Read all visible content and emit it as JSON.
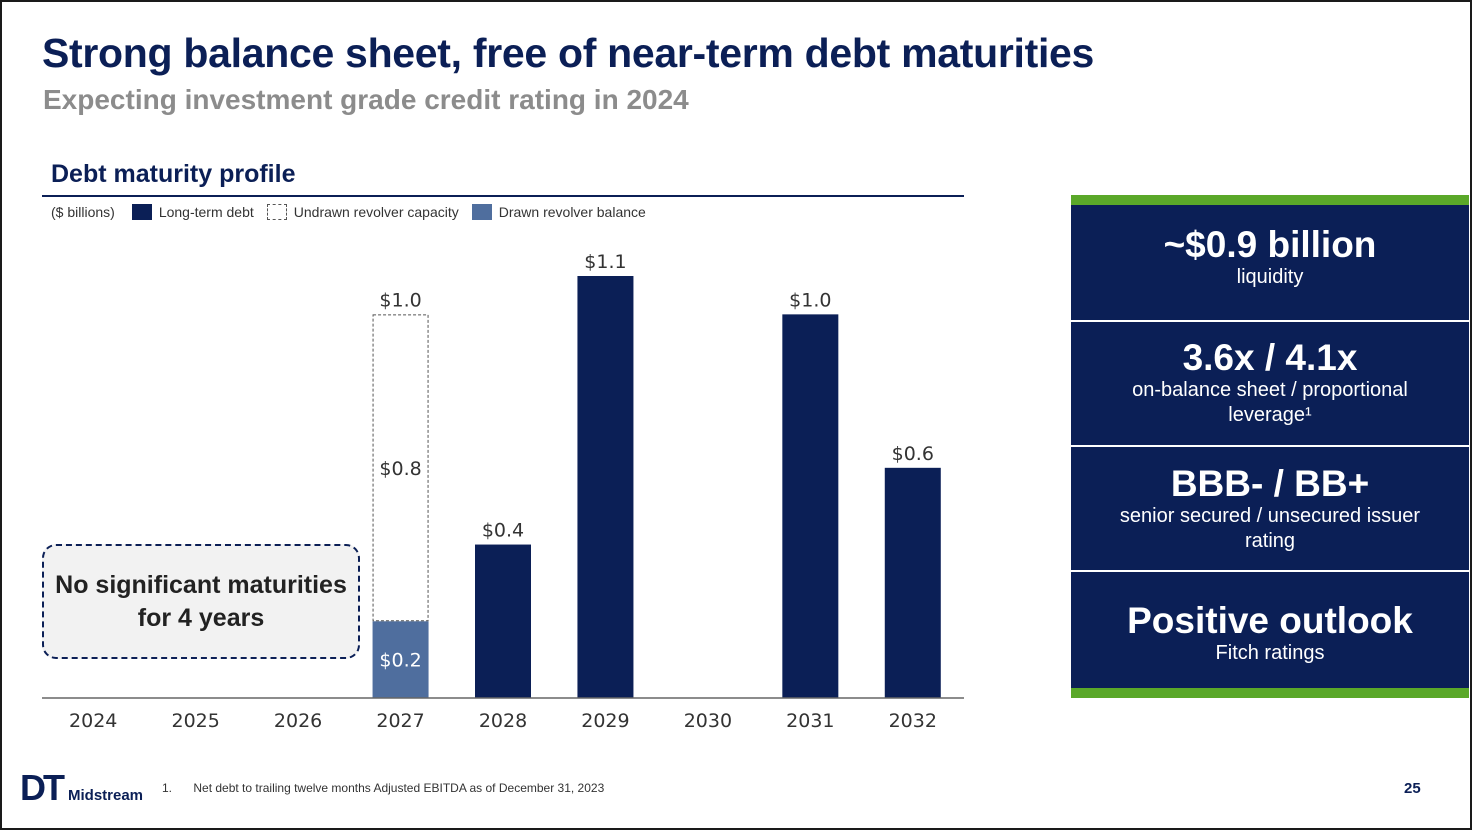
{
  "header": {
    "title": "Strong balance sheet, free of near-term debt maturities",
    "subtitle": "Expecting investment grade credit rating in 2024"
  },
  "section": {
    "title": "Debt maturity profile"
  },
  "legend": {
    "unit": "($ billions)",
    "items": [
      {
        "label": "Long-term debt",
        "color": "#0b1f56"
      },
      {
        "label": "Undrawn revolver capacity",
        "color": "#ffffff"
      },
      {
        "label": "Drawn revolver balance",
        "color": "#4f6e9e"
      }
    ]
  },
  "chart_data": {
    "type": "bar",
    "stacked": true,
    "title": "Debt maturity profile",
    "unit": "($ billions)",
    "categories": [
      "2024",
      "2025",
      "2026",
      "2027",
      "2028",
      "2029",
      "2030",
      "2031",
      "2032"
    ],
    "series": [
      {
        "name": "Long-term debt",
        "color": "#0b1f56",
        "values": [
          0,
          0,
          0,
          0,
          0.4,
          1.1,
          0,
          1.0,
          0.6
        ]
      },
      {
        "name": "Drawn revolver balance",
        "color": "#4f6e9e",
        "values": [
          0,
          0,
          0,
          0.2,
          0,
          0,
          0,
          0,
          0
        ]
      },
      {
        "name": "Undrawn revolver capacity",
        "color": "#ffffff",
        "values": [
          0,
          0,
          0,
          0.8,
          0,
          0,
          0,
          0,
          0
        ]
      }
    ],
    "segment_labels": {
      "2027": {
        "Drawn revolver balance": "$0.2",
        "Undrawn revolver capacity": "$0.8"
      }
    },
    "total_labels": [
      "",
      "",
      "",
      "$1.0",
      "$0.4",
      "$1.1",
      "",
      "$1.0",
      "$0.6"
    ],
    "ylim": [
      0,
      1.1
    ],
    "grid": false
  },
  "callout": {
    "text": "No significant maturities for 4 years"
  },
  "stats": [
    {
      "value": "~$0.9 billion",
      "label": "liquidity"
    },
    {
      "value": "3.6x / 4.1x",
      "label": "on-balance sheet / proportional leverage¹"
    },
    {
      "value": "BBB- / BB+",
      "label": "senior secured / unsecured issuer rating"
    },
    {
      "value": "Positive outlook",
      "label": "Fitch ratings"
    }
  ],
  "footer": {
    "logo_dt": "DT",
    "logo_word": "Midstream",
    "footnote_number": "1.",
    "footnote_text": "Net debt to trailing twelve months Adjusted EBITDA as of December 31, 2023",
    "page_number": "25"
  }
}
